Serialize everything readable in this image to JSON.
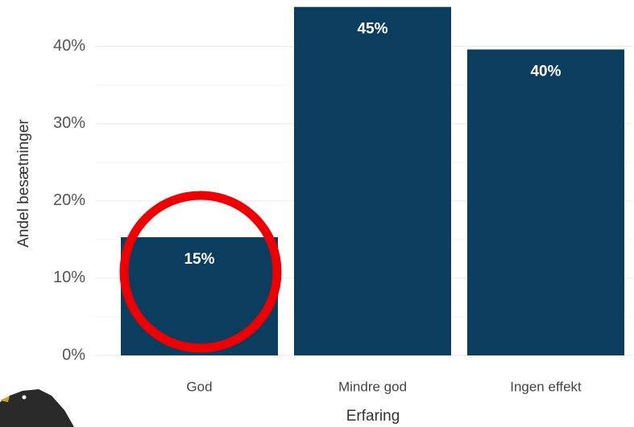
{
  "chart_data": {
    "type": "bar",
    "categories": [
      "God",
      "Mindre god",
      "Ingen effekt"
    ],
    "values": [
      15.3,
      45.1,
      39.6
    ],
    "value_labels": [
      "15%",
      "45%",
      "40%"
    ],
    "color": "#0b3e5e",
    "ylim": [
      0,
      46
    ],
    "yticks": [
      {
        "value": 0,
        "label": "0%"
      },
      {
        "value": 10,
        "label": "10%"
      },
      {
        "value": 20,
        "label": "20%"
      },
      {
        "value": 30,
        "label": "30%"
      },
      {
        "value": 40,
        "label": "40%"
      }
    ],
    "grid": true,
    "x_label": "Erfaring",
    "y_label": "Andel besætninger"
  }
}
